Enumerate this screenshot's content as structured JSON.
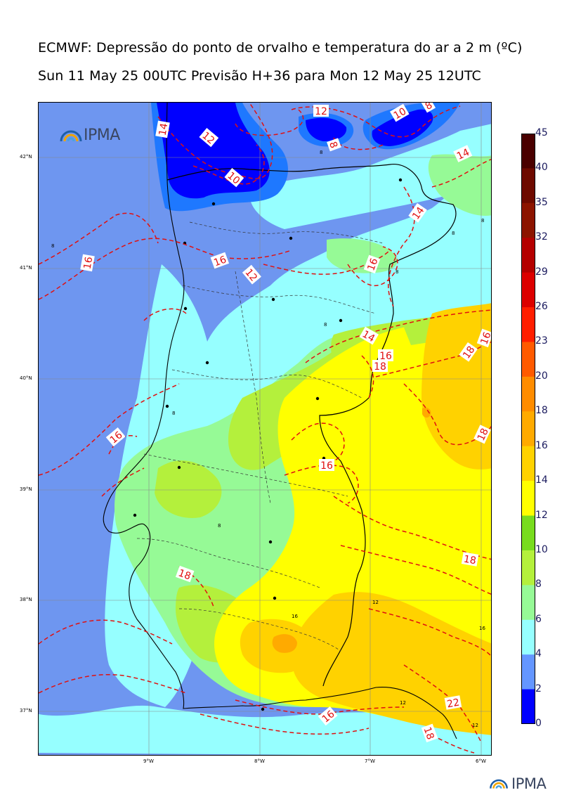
{
  "title_line1": "ECMWF: Depressão do ponto de orvalho e temperatura do ar a 2 m (ºC)",
  "title_line2": "Sun 11 May 25 00UTC Previsão H+36 para Mon 12 May 25 12UTC",
  "logo_text": "IPMA",
  "map": {
    "lat_labels": [
      "42°N",
      "41°N",
      "40°N",
      "39°N",
      "38°N",
      "37°N"
    ],
    "lon_labels": [
      "9°W",
      "8°W",
      "7°W",
      "6°W"
    ],
    "red_contour_labels": [
      "14",
      "12",
      "10",
      "12",
      "10",
      "8",
      "8",
      "14",
      "14",
      "16",
      "16",
      "12",
      "16",
      "14",
      "16",
      "18",
      "18",
      "16",
      "16",
      "16",
      "18",
      "18",
      "18",
      "16",
      "22",
      "18"
    ],
    "black_contour_labels": [
      "8",
      "8",
      "8",
      "8",
      "8",
      "8",
      "8",
      "8",
      "12",
      "16",
      "16",
      "12",
      "12"
    ]
  },
  "colorbar": {
    "labels": [
      "45",
      "40",
      "35",
      "32",
      "29",
      "26",
      "23",
      "20",
      "18",
      "16",
      "14",
      "12",
      "10",
      "8",
      "6",
      "4",
      "2",
      "0"
    ],
    "colors": [
      "#4a0000",
      "#6e0a00",
      "#8c1400",
      "#b40000",
      "#dc0000",
      "#ff1e00",
      "#ff5a00",
      "#ff8c00",
      "#ffaa00",
      "#ffd200",
      "#ffff00",
      "#78dc1e",
      "#b4f03c",
      "#96fa96",
      "#96ffff",
      "#6496ff",
      "#1e78ff",
      "#0000ff"
    ]
  },
  "colors": {
    "dep_0_2": "#0000ff",
    "dep_2_4": "#1e78ff",
    "dep_4_6": "#6e96f0",
    "dep_6_8": "#96ffff",
    "dep_8_10": "#96fa96",
    "dep_10_12": "#b4f03c",
    "dep_12_14": "#ffff00",
    "dep_14_16": "#ffd200",
    "dep_16_18": "#ffaa00",
    "contour_red": "#e01010",
    "coast": "#000000"
  }
}
